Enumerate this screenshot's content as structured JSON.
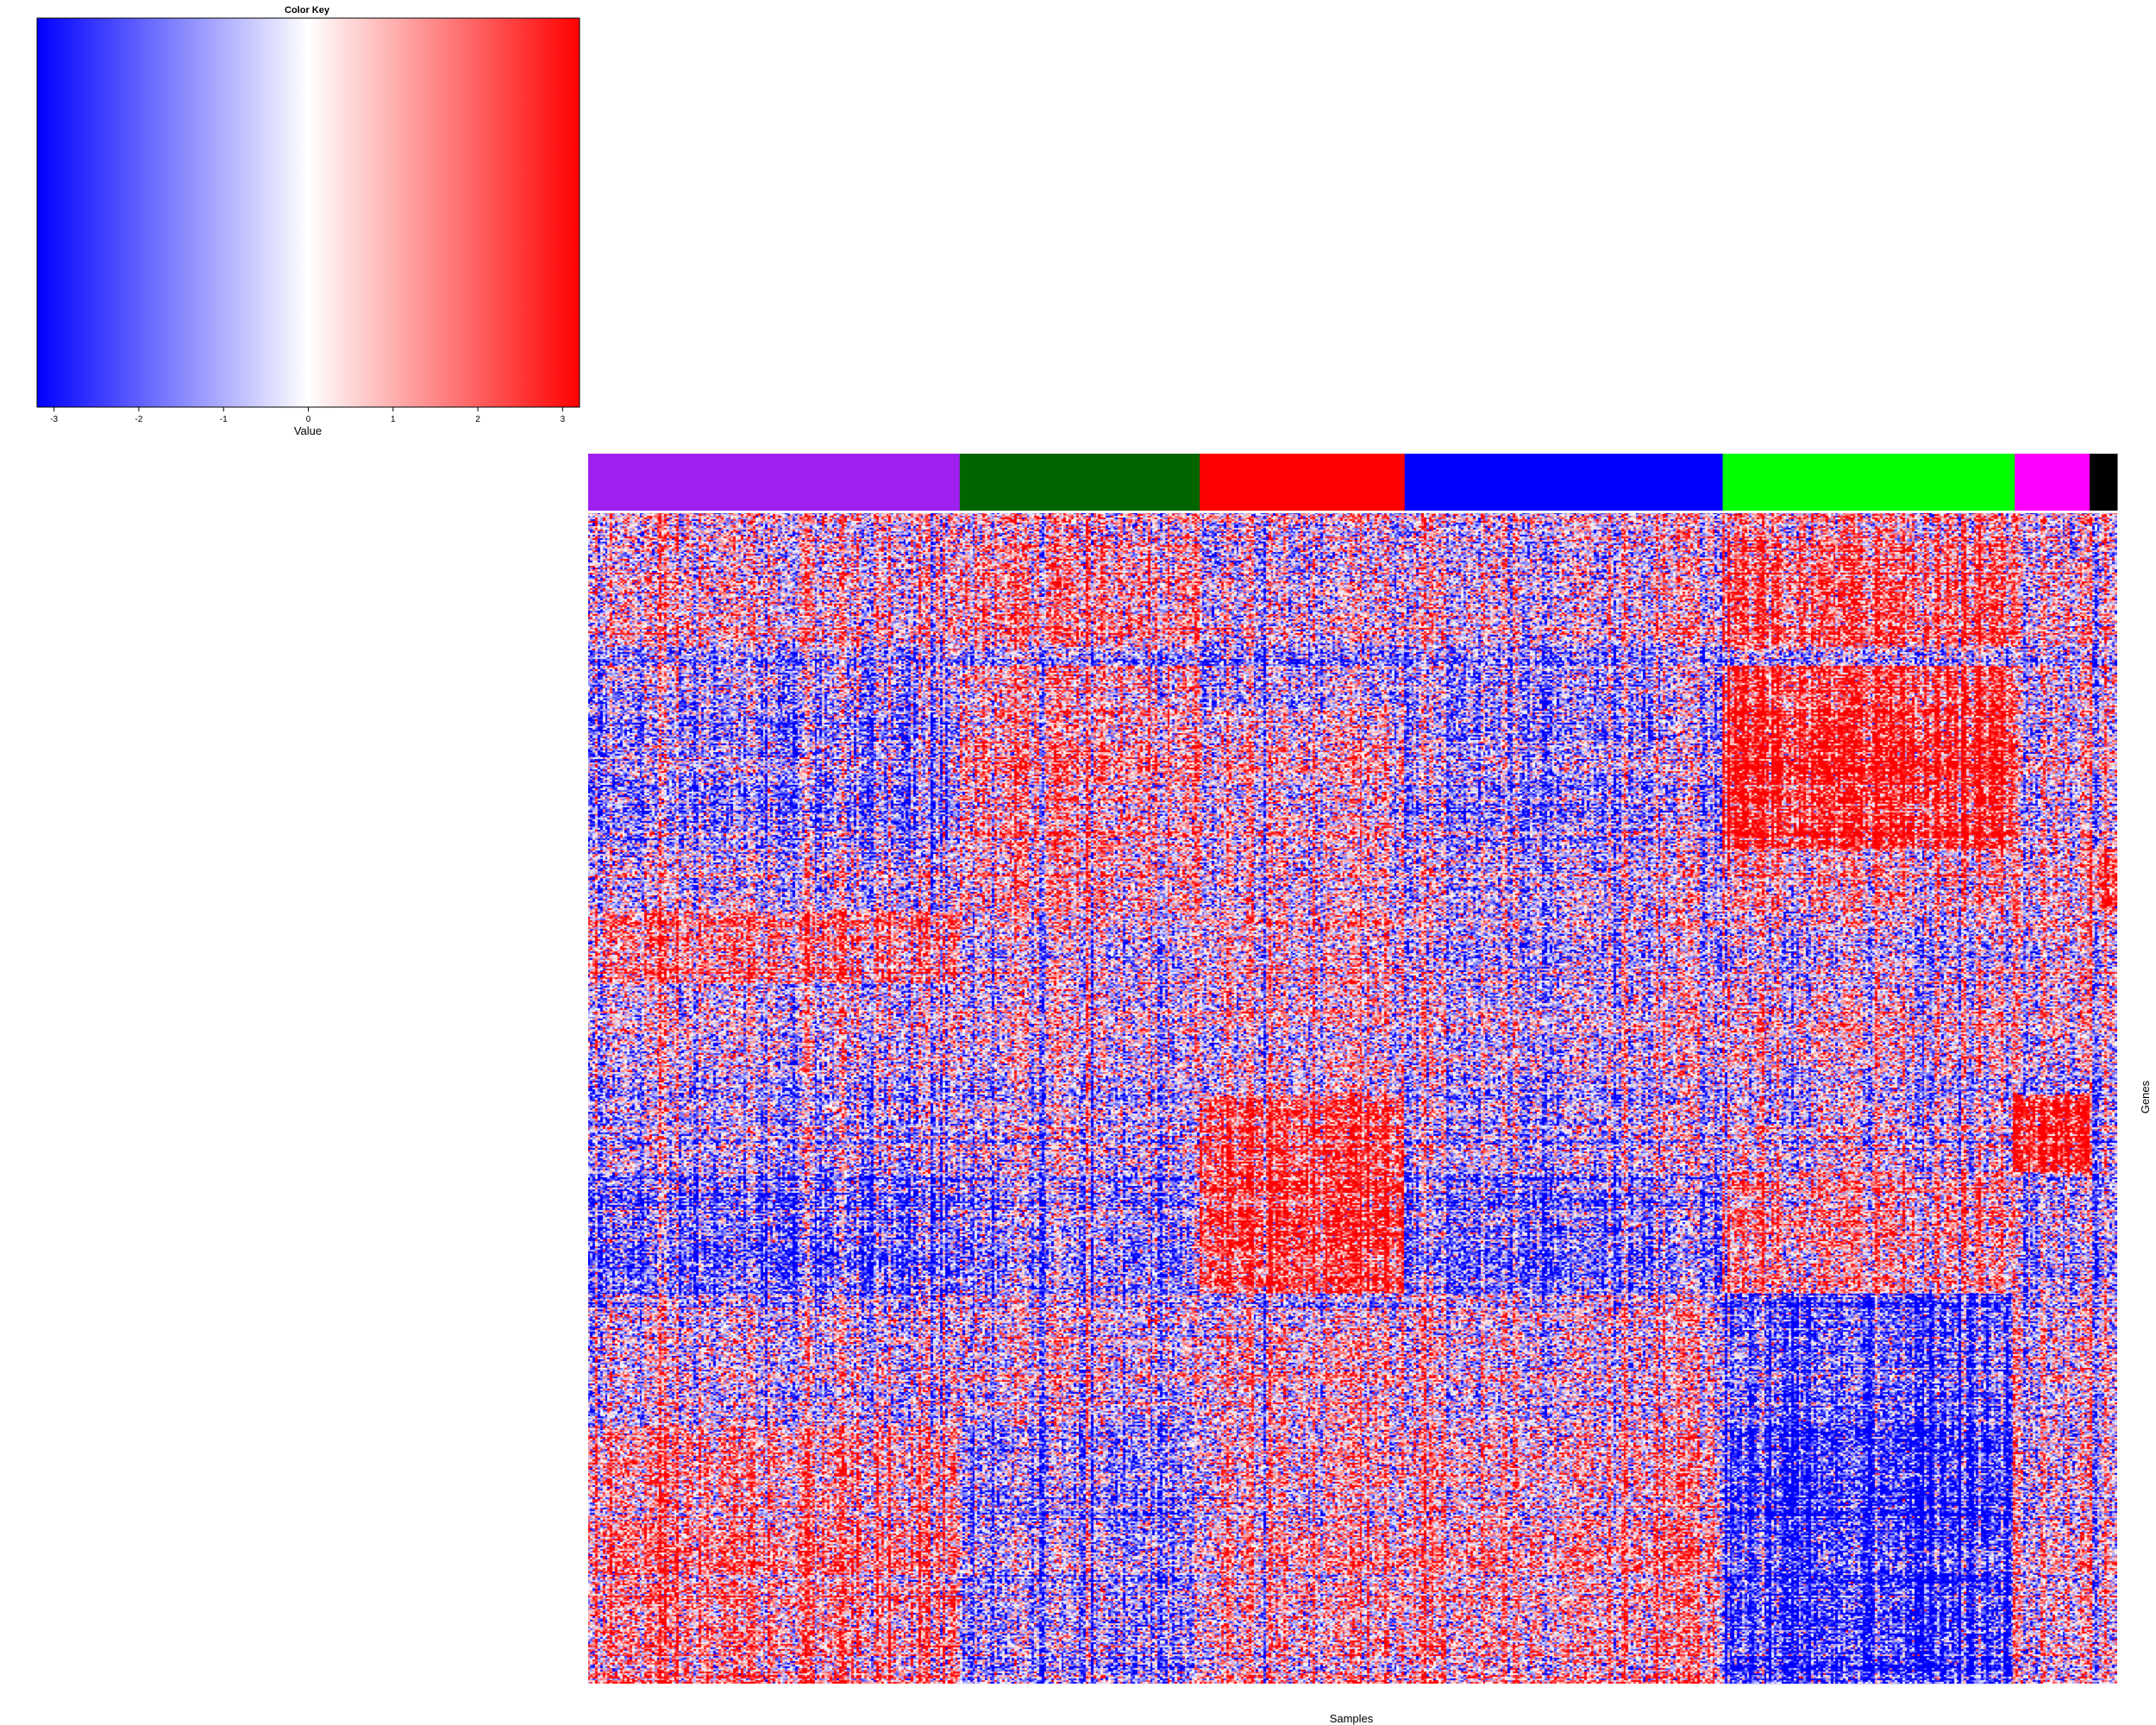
{
  "chart_data": {
    "type": "heatmap",
    "title": "",
    "xlabel": "Samples",
    "ylabel": "Genes",
    "color_key": {
      "title": "Color Key",
      "label": "Value",
      "ticks": [
        "-3",
        "-2",
        "-1",
        "0",
        "1",
        "2",
        "3"
      ],
      "range": [
        -3.2,
        3.2
      ],
      "stops": [
        {
          "value": -3.2,
          "color": "#0000ff"
        },
        {
          "value": 0,
          "color": "#ffffff"
        },
        {
          "value": 3.2,
          "color": "#ff0000"
        }
      ]
    },
    "sample_groups": [
      {
        "color": "#a020f0",
        "fraction": 0.243
      },
      {
        "color": "#006400",
        "fraction": 0.157
      },
      {
        "color": "#ff0000",
        "fraction": 0.134
      },
      {
        "color": "#0000ff",
        "fraction": 0.208
      },
      {
        "color": "#00ff00",
        "fraction": 0.191
      },
      {
        "color": "#ff00ff",
        "fraction": 0.049
      },
      {
        "color": "#000000",
        "fraction": 0.018
      }
    ],
    "gene_blocks": [
      {
        "fraction": 0.025,
        "levels": [
          0.0,
          0.0,
          0.0,
          0.0,
          0.4,
          0.0,
          0.0
        ]
      },
      {
        "fraction": 0.09,
        "levels": [
          0.1,
          0.6,
          0.0,
          0.0,
          1.2,
          0.1,
          0.0
        ]
      },
      {
        "fraction": 0.015,
        "levels": [
          -0.9,
          -0.9,
          -0.9,
          -0.9,
          -0.6,
          -0.6,
          -0.6
        ]
      },
      {
        "fraction": 0.035,
        "levels": [
          -0.6,
          0.4,
          -0.3,
          -0.6,
          1.6,
          0.0,
          0.0
        ]
      },
      {
        "fraction": 0.12,
        "levels": [
          -0.9,
          0.6,
          0.4,
          -0.6,
          2.1,
          0.0,
          0.0
        ]
      },
      {
        "fraction": 0.055,
        "levels": [
          -0.4,
          0.3,
          0.1,
          -0.3,
          0.3,
          0.1,
          1.6
        ]
      },
      {
        "fraction": 0.06,
        "levels": [
          0.8,
          -0.3,
          0.4,
          -0.4,
          -0.4,
          0.0,
          0.0
        ]
      },
      {
        "fraction": 0.035,
        "levels": [
          -0.3,
          -0.3,
          0.3,
          -0.2,
          -0.1,
          0.0,
          0.0
        ]
      },
      {
        "fraction": 0.03,
        "levels": [
          -0.2,
          -0.1,
          0.0,
          -0.1,
          0.2,
          0.0,
          0.0
        ]
      },
      {
        "fraction": 0.03,
        "levels": [
          -0.4,
          -0.3,
          0.4,
          -0.2,
          -0.2,
          -0.4,
          -0.4
        ]
      },
      {
        "fraction": 0.065,
        "levels": [
          -0.6,
          -0.5,
          1.6,
          -0.4,
          -0.3,
          2.2,
          -0.6
        ]
      },
      {
        "fraction": 0.105,
        "levels": [
          -1.3,
          -0.9,
          1.9,
          -1.0,
          0.6,
          -0.5,
          -0.6
        ]
      },
      {
        "fraction": 0.025,
        "levels": [
          -0.2,
          0.0,
          0.0,
          0.3,
          -1.5,
          0.0,
          0.0
        ]
      },
      {
        "fraction": 0.085,
        "levels": [
          -0.2,
          -0.2,
          0.5,
          0.1,
          -1.4,
          0.0,
          0.0
        ]
      },
      {
        "fraction": 0.22,
        "levels": [
          0.7,
          -0.9,
          0.5,
          0.5,
          -2.0,
          0.0,
          0.0
        ]
      }
    ]
  }
}
